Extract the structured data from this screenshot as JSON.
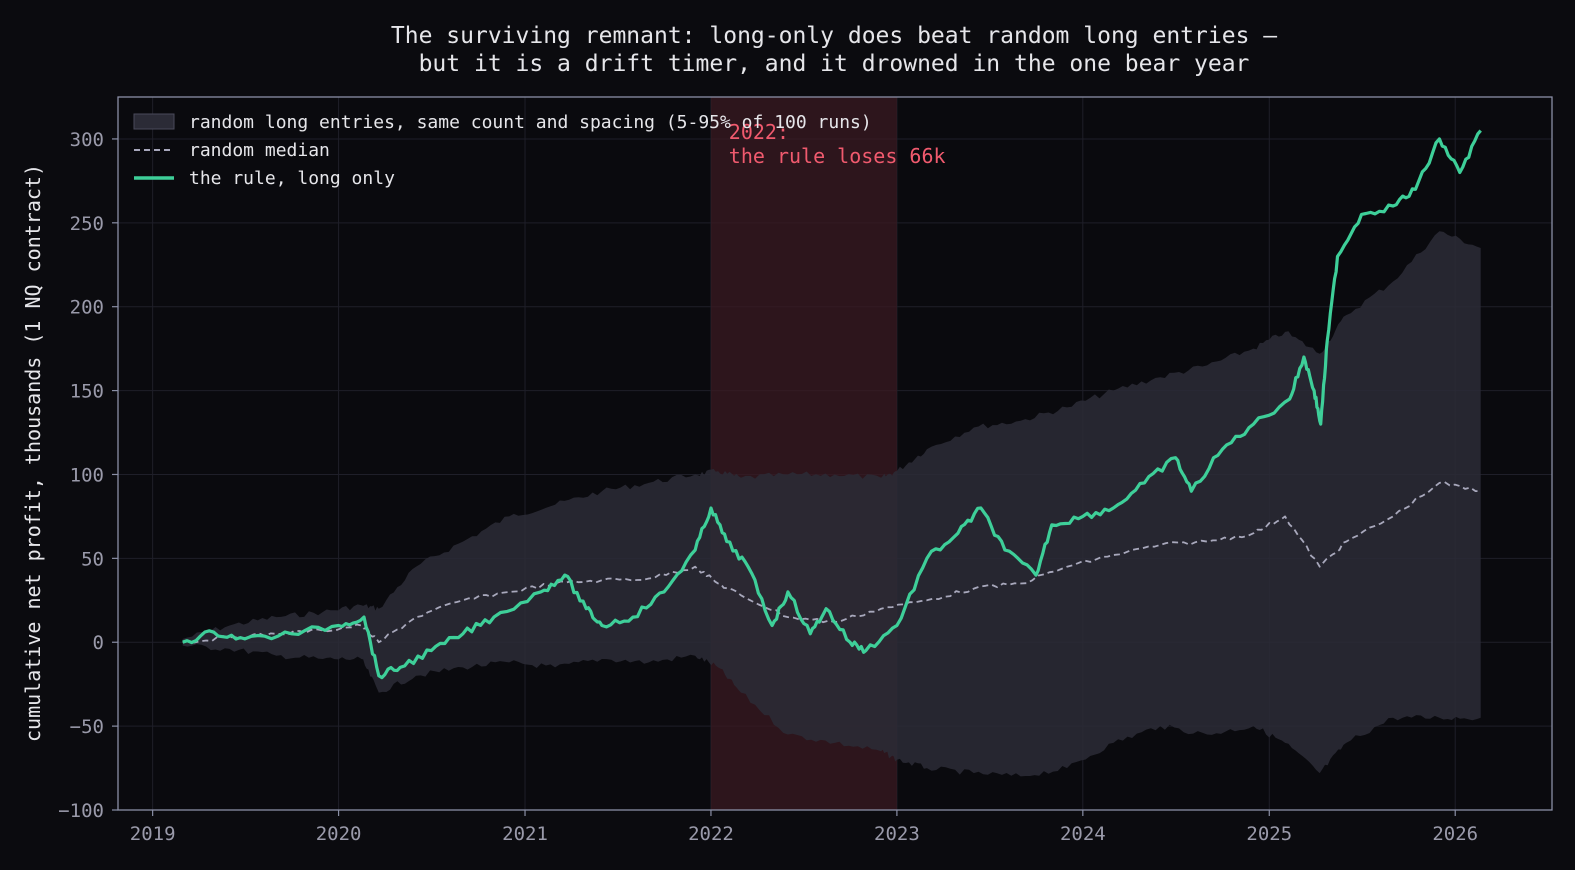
{
  "chart_data": {
    "type": "line",
    "title": [
      "The surviving remnant: long-only does beat random long entries —",
      "but it is a drift timer, and it drowned in the one bear year"
    ],
    "xlabel": "",
    "ylabel": "cumulative net profit, thousands (1 NQ contract)",
    "xlim": [
      "2018-10-25",
      "2026-07-10"
    ],
    "ylim": [
      -100,
      325
    ],
    "x_ticks": [
      "2019",
      "2020",
      "2021",
      "2022",
      "2023",
      "2024",
      "2025",
      "2026"
    ],
    "y_ticks": [
      -100,
      -50,
      0,
      50,
      100,
      150,
      200,
      250,
      300
    ],
    "y_tick_labels": [
      "−100",
      "−50",
      "0",
      "50",
      "100",
      "150",
      "200",
      "250",
      "300"
    ],
    "grid": true,
    "legend_position": "top-left",
    "shaded_regions": [
      {
        "x_start": "2022-01-01",
        "x_end": "2023-01-01",
        "color": "#3a1a22"
      }
    ],
    "annotations": [
      {
        "lines": [
          "2022:",
          "the rule loses 66k"
        ],
        "x": "2022-02-05",
        "y": 300,
        "color": "#f05a6e"
      }
    ],
    "band": {
      "name": "random long entries, same count and spacing (5-95% of 100 runs)",
      "color": "#2b2b36",
      "x": [
        "2019-03-01",
        "2019-06-01",
        "2019-09-01",
        "2019-12-01",
        "2020-02-15",
        "2020-03-20",
        "2020-06-01",
        "2020-09-01",
        "2020-12-01",
        "2021-03-01",
        "2021-06-01",
        "2021-09-01",
        "2021-12-01",
        "2022-01-15",
        "2022-03-01",
        "2022-06-01",
        "2022-09-01",
        "2022-12-01",
        "2023-01-01",
        "2023-03-01",
        "2023-06-01",
        "2023-09-01",
        "2023-12-01",
        "2024-03-01",
        "2024-06-01",
        "2024-09-01",
        "2024-12-01",
        "2025-02-01",
        "2025-04-10",
        "2025-06-01",
        "2025-09-01",
        "2025-12-01",
        "2026-02-20"
      ],
      "upper": [
        2,
        10,
        15,
        18,
        22,
        20,
        45,
        60,
        75,
        82,
        90,
        95,
        100,
        102,
        98,
        100,
        100,
        98,
        102,
        115,
        128,
        132,
        140,
        150,
        158,
        165,
        175,
        185,
        172,
        195,
        215,
        245,
        235
      ],
      "lower": [
        -2,
        -4,
        -8,
        -10,
        -10,
        -30,
        -20,
        -15,
        -12,
        -15,
        -10,
        -12,
        -8,
        -15,
        -30,
        -55,
        -60,
        -65,
        -70,
        -75,
        -78,
        -80,
        -75,
        -60,
        -50,
        -55,
        -50,
        -60,
        -78,
        -60,
        -45,
        -45,
        -45
      ]
    },
    "series": [
      {
        "name": "random median",
        "color": "#a8a8bc",
        "style": "dashed",
        "x": [
          "2019-03-01",
          "2019-06-01",
          "2019-09-01",
          "2019-12-01",
          "2020-02-15",
          "2020-03-20",
          "2020-06-01",
          "2020-09-01",
          "2020-12-01",
          "2021-03-01",
          "2021-06-01",
          "2021-09-01",
          "2021-12-01",
          "2022-01-15",
          "2022-03-01",
          "2022-06-01",
          "2022-09-01",
          "2022-12-01",
          "2023-03-01",
          "2023-06-01",
          "2023-09-01",
          "2023-12-01",
          "2024-03-01",
          "2024-06-01",
          "2024-09-01",
          "2024-12-01",
          "2025-02-01",
          "2025-04-10",
          "2025-06-01",
          "2025-09-01",
          "2025-12-01",
          "2026-02-20"
        ],
        "y": [
          0,
          3,
          5,
          7,
          10,
          0,
          15,
          25,
          30,
          35,
          37,
          38,
          45,
          35,
          28,
          15,
          12,
          20,
          25,
          32,
          35,
          45,
          52,
          58,
          60,
          65,
          75,
          45,
          60,
          75,
          95,
          90
        ]
      },
      {
        "name": "the rule, long only",
        "color": "#3ecf99",
        "style": "solid",
        "x": [
          "2019-03-01",
          "2019-05-01",
          "2019-07-01",
          "2019-10-01",
          "2020-01-01",
          "2020-02-20",
          "2020-03-20",
          "2020-05-01",
          "2020-07-01",
          "2020-09-01",
          "2020-11-01",
          "2021-02-01",
          "2021-03-20",
          "2021-05-01",
          "2021-06-01",
          "2021-08-01",
          "2021-10-01",
          "2021-12-01",
          "2022-01-01",
          "2022-02-01",
          "2022-03-15",
          "2022-05-01",
          "2022-06-01",
          "2022-07-15",
          "2022-08-15",
          "2022-10-01",
          "2022-11-01",
          "2023-01-01",
          "2023-03-01",
          "2023-05-01",
          "2023-06-15",
          "2023-08-01",
          "2023-10-01",
          "2023-11-01",
          "2024-01-01",
          "2024-03-01",
          "2024-05-01",
          "2024-07-01",
          "2024-08-01",
          "2024-10-01",
          "2024-12-01",
          "2025-02-10",
          "2025-03-10",
          "2025-03-30",
          "2025-04-12",
          "2025-04-25",
          "2025-05-15",
          "2025-07-01",
          "2025-09-01",
          "2025-10-15",
          "2025-12-01",
          "2026-01-10",
          "2026-02-20"
        ],
        "y": [
          0,
          6,
          2,
          5,
          10,
          15,
          -20,
          -15,
          -5,
          5,
          15,
          30,
          40,
          20,
          10,
          15,
          30,
          55,
          80,
          60,
          45,
          10,
          30,
          5,
          20,
          0,
          -5,
          10,
          50,
          65,
          80,
          55,
          40,
          70,
          75,
          80,
          95,
          110,
          90,
          115,
          130,
          145,
          170,
          150,
          130,
          180,
          230,
          255,
          260,
          270,
          300,
          280,
          305
        ]
      }
    ]
  }
}
